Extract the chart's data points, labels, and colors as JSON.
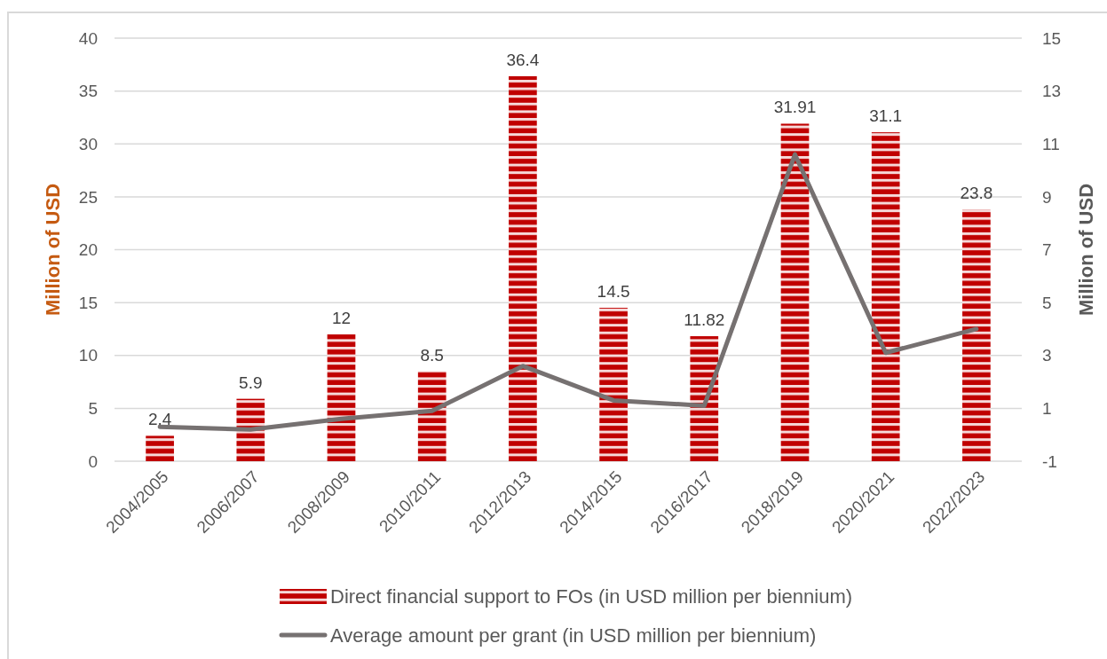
{
  "chart_data": {
    "type": "bar",
    "categories": [
      "2004/2005",
      "2006/2007",
      "2008/2009",
      "2010/2011",
      "2012/2013",
      "2014/2015",
      "2016/2017",
      "2018/2019",
      "2020/2021",
      "2022/2023"
    ],
    "series": [
      {
        "name": "Direct financial support to FOs (in USD million per biennium)",
        "color": "#c00000",
        "values": [
          2.4,
          5.9,
          12,
          8.5,
          36.4,
          14.5,
          11.82,
          31.91,
          31.1,
          23.8
        ],
        "value_labels": [
          "2.4",
          "5.9",
          "12",
          "8.5",
          "36.4",
          "14.5",
          "11.82",
          "31.91",
          "31.1",
          "23.8"
        ]
      },
      {
        "name": "Average amount per grant (in USD million per biennium)",
        "type": "line",
        "color": "#767171",
        "axis": "y2",
        "values": [
          0.3,
          0.2,
          0.6,
          0.9,
          2.6,
          1.3,
          1.1,
          10.6,
          3.1,
          4.0
        ]
      }
    ],
    "ylabel": "Million of USD",
    "y2label": "Million of USD",
    "ylim": [
      0,
      40
    ],
    "yticks": [
      0,
      5,
      10,
      15,
      20,
      25,
      30,
      35,
      40
    ],
    "y2lim": [
      -1,
      15
    ],
    "y2ticks": [
      -1,
      1,
      3,
      5,
      7,
      9,
      11,
      13,
      15
    ],
    "grid": "y",
    "legend": "bottom"
  }
}
